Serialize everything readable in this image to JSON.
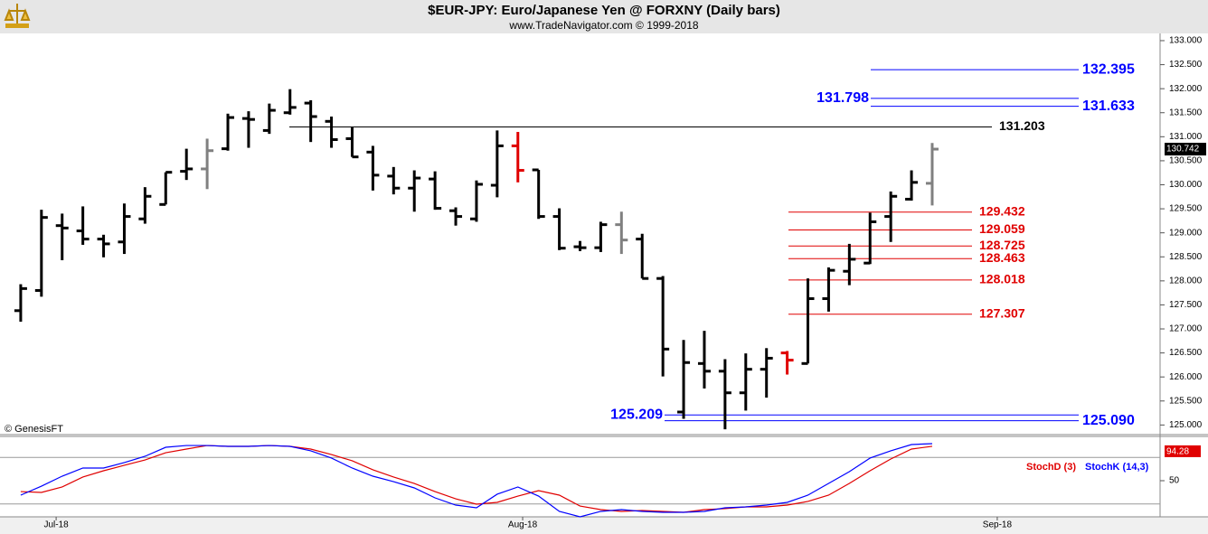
{
  "chart_data": [
    {
      "type": "ohlc",
      "title": "$EUR-JPY:  Euro/Japanese Yen @ FORXNY  (Daily bars)",
      "subtitle": "www.TradeNavigator.com © 1999-2018",
      "annotation": "© GenesisFT",
      "open": [
        127.38,
        127.8,
        129.15,
        129.04,
        128.87,
        128.81,
        129.29,
        129.59,
        130.28,
        130.33,
        130.75,
        131.38,
        131.13,
        131.5,
        131.7,
        131.32,
        130.96,
        130.68,
        130.18,
        129.93,
        130.12,
        129.46,
        129.29,
        129.99,
        130.81,
        130.31,
        129.34,
        128.71,
        128.69,
        129.17,
        128.87,
        128.05,
        125.27,
        126.28,
        126.12,
        125.67,
        126.16,
        126.5,
        126.28,
        127.63,
        128.2,
        128.37,
        129.34,
        129.7,
        130.03
      ],
      "high": [
        127.93,
        129.48,
        129.4,
        129.55,
        128.96,
        129.61,
        129.95,
        130.26,
        130.75,
        130.96,
        131.48,
        131.53,
        131.69,
        131.99,
        131.76,
        131.42,
        131.21,
        130.81,
        130.37,
        130.3,
        130.28,
        129.53,
        130.09,
        131.13,
        131.1,
        130.31,
        129.51,
        128.83,
        129.23,
        129.44,
        128.98,
        128.1,
        126.77,
        126.96,
        126.37,
        126.49,
        126.6,
        126.54,
        128.05,
        128.28,
        128.77,
        129.42,
        129.86,
        130.3,
        130.87
      ],
      "low": [
        127.15,
        127.67,
        128.43,
        128.75,
        128.49,
        128.56,
        129.19,
        129.59,
        130.1,
        129.91,
        130.71,
        130.77,
        131.06,
        131.46,
        130.89,
        130.77,
        130.58,
        129.88,
        129.8,
        129.44,
        129.48,
        129.15,
        129.23,
        129.74,
        130.05,
        129.29,
        128.64,
        128.62,
        128.6,
        128.56,
        128.05,
        126.01,
        125.13,
        125.76,
        124.91,
        125.3,
        125.57,
        126.05,
        126.28,
        127.36,
        127.91,
        128.35,
        128.81,
        129.67,
        129.57
      ],
      "close": [
        127.84,
        129.32,
        129.1,
        128.87,
        128.77,
        129.34,
        129.76,
        130.26,
        130.33,
        130.71,
        131.4,
        131.36,
        131.55,
        131.61,
        131.42,
        130.94,
        130.58,
        130.2,
        129.93,
        130.14,
        129.51,
        129.34,
        130.01,
        130.81,
        130.3,
        129.34,
        128.68,
        128.69,
        129.17,
        128.85,
        128.05,
        126.58,
        126.3,
        126.12,
        125.67,
        126.16,
        126.39,
        126.35,
        127.63,
        128.22,
        128.45,
        129.23,
        129.76,
        130.05,
        130.742
      ],
      "bar_colors": [
        "#000000",
        "#000000",
        "#000000",
        "#000000",
        "#000000",
        "#000000",
        "#000000",
        "#000000",
        "#000000",
        "#808080",
        "#000000",
        "#000000",
        "#000000",
        "#000000",
        "#000000",
        "#000000",
        "#000000",
        "#000000",
        "#000000",
        "#000000",
        "#000000",
        "#000000",
        "#000000",
        "#000000",
        "#e00000",
        "#000000",
        "#000000",
        "#000000",
        "#000000",
        "#808080",
        "#000000",
        "#000000",
        "#000000",
        "#000000",
        "#000000",
        "#000000",
        "#000000",
        "#e00000",
        "#000000",
        "#000000",
        "#000000",
        "#000000",
        "#000000",
        "#000000",
        "#808080"
      ],
      "levels": [
        {
          "value": 132.395,
          "color": "#0000ff"
        },
        {
          "value": 131.798,
          "color": "#0000ff"
        },
        {
          "value": 131.633,
          "color": "#0000ff"
        },
        {
          "value": 131.203,
          "color": "#000000"
        },
        {
          "value": 129.432,
          "color": "#e00000"
        },
        {
          "value": 129.059,
          "color": "#e00000"
        },
        {
          "value": 128.725,
          "color": "#e00000"
        },
        {
          "value": 128.463,
          "color": "#e00000"
        },
        {
          "value": 128.018,
          "color": "#e00000"
        },
        {
          "value": 127.307,
          "color": "#e00000"
        },
        {
          "value": 125.209,
          "color": "#0000ff"
        },
        {
          "value": 125.09,
          "label": "125.090",
          "color": "#0000ff"
        }
      ],
      "xlim": [
        -1,
        55
      ],
      "ylim": [
        124.8,
        133.15
      ],
      "yticks": [
        {
          "value": 125,
          "label": "125.000"
        },
        {
          "value": 125.5,
          "label": "125.500"
        },
        {
          "value": 126,
          "label": "126.000"
        },
        {
          "value": 126.5,
          "label": "126.500"
        },
        {
          "value": 127,
          "label": "127.000"
        },
        {
          "value": 127.5,
          "label": "127.500"
        },
        {
          "value": 128,
          "label": "128.000"
        },
        {
          "value": 128.5,
          "label": "128.500"
        },
        {
          "value": 129,
          "label": "129.000"
        },
        {
          "value": 129.5,
          "label": "129.500"
        },
        {
          "value": 130,
          "label": "130.000"
        },
        {
          "value": 130.5,
          "label": "130.500"
        },
        {
          "value": 131,
          "label": "131.000"
        },
        {
          "value": 131.5,
          "label": "131.500"
        },
        {
          "value": 132,
          "label": "132.000"
        },
        {
          "value": 132.5,
          "label": "132.500"
        },
        {
          "value": 133,
          "label": "133.000"
        }
      ]
    },
    {
      "type": "line",
      "series": [
        {
          "name": "StochD (3)",
          "color": "#e00000",
          "values": [
            36.0,
            34.9,
            41.9,
            54.7,
            62.8,
            69.8,
            76.7,
            86.0,
            90.7,
            95.3,
            94.2,
            94.2,
            95.3,
            94.2,
            90.7,
            83.7,
            75.6,
            64.0,
            54.7,
            46.5,
            36.0,
            26.7,
            19.8,
            22.1,
            30.2,
            37.2,
            31.4,
            17.4,
            12.8,
            10.5,
            11.6,
            10.5,
            9.3,
            12.8,
            14.0,
            16.3,
            16.3,
            18.6,
            23.3,
            31.4,
            46.5,
            62.8,
            77.9,
            90.7,
            94.28
          ]
        },
        {
          "name": "StochK (14,3)",
          "color": "#0000ff",
          "values": [
            31.4,
            43.0,
            55.8,
            66.3,
            66.3,
            73.3,
            81.4,
            93.0,
            95.3,
            95.3,
            94.2,
            94.2,
            95.3,
            94.2,
            88.4,
            79.1,
            66.3,
            55.8,
            48.8,
            40.7,
            27.9,
            18.6,
            15.1,
            32.6,
            41.9,
            30.2,
            10.5,
            3.5,
            10.5,
            12.8,
            10.5,
            9.3,
            9.3,
            10.5,
            15.1,
            16.3,
            18.6,
            22.1,
            31.4,
            46.5,
            61.6,
            79.1,
            88.4,
            96.5,
            97.7
          ]
        }
      ],
      "xlim": [
        -1,
        55
      ],
      "ylim": [
        0,
        100
      ],
      "yticks": [
        50
      ],
      "ref_lines": [
        20,
        80
      ],
      "xticks": [
        {
          "value": 1.71,
          "label": "Jul-18"
        },
        {
          "value": 24.23,
          "label": "Aug-18"
        },
        {
          "value": 47.14,
          "label": "Sep-18"
        }
      ]
    }
  ]
}
